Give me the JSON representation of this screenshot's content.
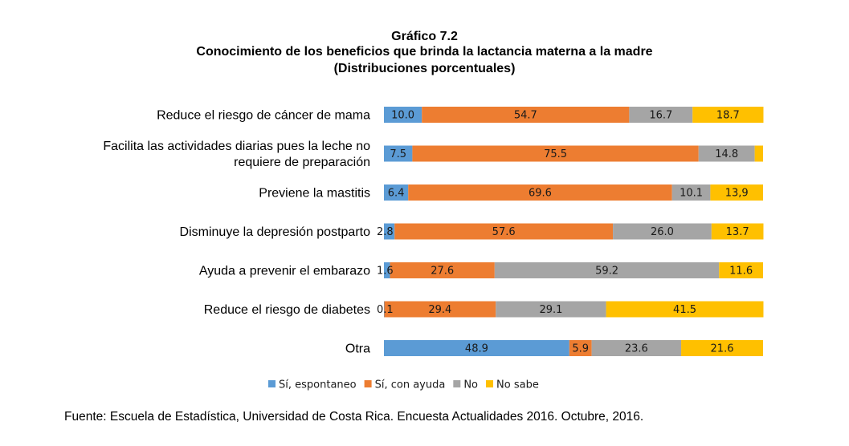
{
  "header": {
    "number": "Gráfico 7.2",
    "title": "Conocimiento de los beneficios que brinda la lactancia materna a la madre",
    "subtitle": "(Distribuciones porcentuales)"
  },
  "chart_data": {
    "type": "bar",
    "orientation": "horizontal",
    "stacked": true,
    "xlim": [
      0,
      100
    ],
    "categories": [
      [
        "Reduce el riesgo de cáncer de mama"
      ],
      [
        "Facilita las actividades diarias pues la leche no",
        "requiere de preparación"
      ],
      [
        "Previene la mastitis"
      ],
      [
        "Disminuye la depresión postparto"
      ],
      [
        "Ayuda a prevenir el embarazo"
      ],
      [
        "Reduce el riesgo de diabetes"
      ],
      [
        "Otra"
      ]
    ],
    "series": [
      {
        "name": "Sí, espontaneo",
        "color": "#5B9BD5",
        "values": [
          10.0,
          7.5,
          6.4,
          2.8,
          1.6,
          0.1,
          48.9
        ],
        "labels": [
          "10.0",
          "7.5",
          "6.4",
          "2.8",
          "1.6",
          "0.1",
          "48.9"
        ]
      },
      {
        "name": "Sí, con ayuda",
        "color": "#ED7D31",
        "values": [
          54.7,
          75.5,
          69.6,
          57.6,
          27.6,
          29.4,
          5.9
        ],
        "labels": [
          "54.7",
          "75.5",
          "69.6",
          "57.6",
          "27.6",
          "29.4",
          "5.9"
        ]
      },
      {
        "name": "No",
        "color": "#A5A5A5",
        "values": [
          16.7,
          14.8,
          10.1,
          26.0,
          59.2,
          29.1,
          23.6
        ],
        "labels": [
          "16.7",
          "14.8",
          "10.1",
          "26.0",
          "59.2",
          "29.1",
          "23.6"
        ]
      },
      {
        "name": "No sabe",
        "color": "#FFC000",
        "values": [
          18.7,
          2.2,
          13.9,
          13.7,
          11.6,
          41.5,
          21.6
        ],
        "labels": [
          "18.7",
          "",
          "13,9",
          "13.7",
          "11.6",
          "41.5",
          "21.6"
        ]
      }
    ],
    "legend": "bottom"
  },
  "footer": {
    "source": "Fuente: Escuela de Estadística, Universidad de Costa Rica. Encuesta Actualidades 2016. Octubre, 2016."
  }
}
